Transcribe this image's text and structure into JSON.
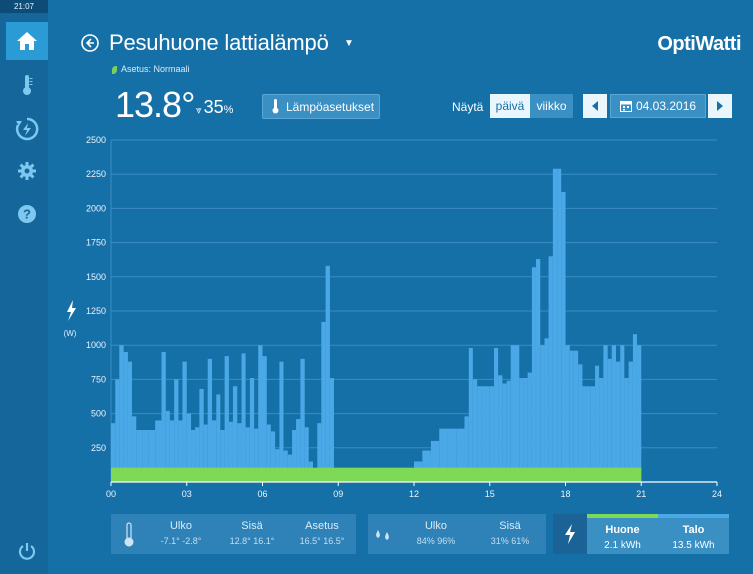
{
  "clock": "21:07",
  "nav": [
    {
      "name": "home-icon"
    },
    {
      "name": "thermometer-icon"
    },
    {
      "name": "energy-saving-icon"
    },
    {
      "name": "gear-icon"
    },
    {
      "name": "help-icon"
    },
    {
      "name": "power-icon"
    }
  ],
  "header": {
    "title": "Pesuhuone lattialämpö",
    "setting": "Asetus: Normaali",
    "brand": "OptiWatti"
  },
  "status": {
    "temperature": "13.8°",
    "humidity": "35",
    "humidity_unit": "%",
    "heat_button": "Lämpöasetukset"
  },
  "view": {
    "show_label": "Näytä",
    "day": "päivä",
    "week": "viikko",
    "date": "04.03.2016"
  },
  "colors": {
    "background": "#1670a8",
    "bar": "#4aa8e6",
    "setpoint": "#7ed957",
    "accent": "#2b9bd6"
  },
  "chart_data": {
    "type": "bar",
    "ylabel": "(W)",
    "ylim": [
      0,
      2500
    ],
    "yticks": [
      "2500",
      "2250",
      "2000",
      "1750",
      "1500",
      "1250",
      "1000",
      "750",
      "500",
      "250"
    ],
    "xlim": [
      0,
      24
    ],
    "xticks": [
      "00",
      "03",
      "06",
      "09",
      "12",
      "15",
      "18",
      "21",
      "24"
    ],
    "series_power": [
      [
        0.0,
        0.17,
        430
      ],
      [
        0.17,
        0.33,
        750
      ],
      [
        0.33,
        0.5,
        1000
      ],
      [
        0.5,
        0.67,
        950
      ],
      [
        0.67,
        0.83,
        880
      ],
      [
        0.83,
        1.0,
        480
      ],
      [
        1.0,
        1.25,
        380
      ],
      [
        1.25,
        1.5,
        380
      ],
      [
        1.5,
        1.75,
        380
      ],
      [
        1.75,
        2.0,
        450
      ],
      [
        2.0,
        2.17,
        950
      ],
      [
        2.17,
        2.33,
        520
      ],
      [
        2.33,
        2.5,
        450
      ],
      [
        2.5,
        2.67,
        750
      ],
      [
        2.67,
        2.83,
        450
      ],
      [
        2.83,
        3.0,
        880
      ],
      [
        3.0,
        3.17,
        500
      ],
      [
        3.17,
        3.33,
        380
      ],
      [
        3.33,
        3.5,
        400
      ],
      [
        3.5,
        3.67,
        680
      ],
      [
        3.67,
        3.83,
        420
      ],
      [
        3.83,
        4.0,
        900
      ],
      [
        4.0,
        4.17,
        450
      ],
      [
        4.17,
        4.33,
        640
      ],
      [
        4.33,
        4.5,
        380
      ],
      [
        4.5,
        4.67,
        920
      ],
      [
        4.67,
        4.83,
        440
      ],
      [
        4.83,
        5.0,
        700
      ],
      [
        5.0,
        5.17,
        430
      ],
      [
        5.17,
        5.33,
        940
      ],
      [
        5.33,
        5.5,
        400
      ],
      [
        5.5,
        5.67,
        760
      ],
      [
        5.67,
        5.83,
        390
      ],
      [
        5.83,
        6.0,
        1000
      ],
      [
        6.0,
        6.17,
        920
      ],
      [
        6.17,
        6.33,
        420
      ],
      [
        6.33,
        6.5,
        370
      ],
      [
        6.5,
        6.67,
        240
      ],
      [
        6.67,
        6.83,
        880
      ],
      [
        6.83,
        7.0,
        230
      ],
      [
        7.0,
        7.17,
        200
      ],
      [
        7.17,
        7.33,
        380
      ],
      [
        7.33,
        7.5,
        460
      ],
      [
        7.5,
        7.67,
        900
      ],
      [
        7.67,
        7.83,
        400
      ],
      [
        7.83,
        8.0,
        150
      ],
      [
        8.0,
        8.17,
        100
      ],
      [
        8.17,
        8.33,
        430
      ],
      [
        8.33,
        8.5,
        1170
      ],
      [
        8.5,
        8.67,
        1580
      ],
      [
        8.67,
        8.83,
        760
      ],
      [
        8.83,
        9.0,
        100
      ],
      [
        12.0,
        12.33,
        150
      ],
      [
        12.33,
        12.67,
        230
      ],
      [
        12.67,
        13.0,
        300
      ],
      [
        13.0,
        13.33,
        390
      ],
      [
        13.33,
        13.67,
        390
      ],
      [
        13.67,
        14.0,
        390
      ],
      [
        14.0,
        14.17,
        480
      ],
      [
        14.17,
        14.33,
        980
      ],
      [
        14.33,
        14.5,
        750
      ],
      [
        14.5,
        14.67,
        700
      ],
      [
        14.67,
        14.83,
        700
      ],
      [
        14.83,
        15.0,
        700
      ],
      [
        15.0,
        15.17,
        700
      ],
      [
        15.17,
        15.33,
        980
      ],
      [
        15.33,
        15.5,
        780
      ],
      [
        15.5,
        15.67,
        720
      ],
      [
        15.67,
        15.83,
        740
      ],
      [
        15.83,
        16.0,
        1000
      ],
      [
        16.0,
        16.17,
        1000
      ],
      [
        16.17,
        16.33,
        760
      ],
      [
        16.33,
        16.5,
        760
      ],
      [
        16.5,
        16.67,
        800
      ],
      [
        16.67,
        16.83,
        1570
      ],
      [
        16.83,
        17.0,
        1630
      ],
      [
        17.0,
        17.17,
        1000
      ],
      [
        17.17,
        17.33,
        1050
      ],
      [
        17.33,
        17.5,
        1650
      ],
      [
        17.5,
        17.67,
        2290
      ],
      [
        17.67,
        17.83,
        2290
      ],
      [
        17.83,
        18.0,
        2120
      ],
      [
        18.0,
        18.17,
        1000
      ],
      [
        18.17,
        18.33,
        960
      ],
      [
        18.33,
        18.5,
        960
      ],
      [
        18.5,
        18.67,
        860
      ],
      [
        18.67,
        18.83,
        700
      ],
      [
        18.83,
        19.0,
        700
      ],
      [
        19.0,
        19.17,
        700
      ],
      [
        19.17,
        19.33,
        850
      ],
      [
        19.33,
        19.5,
        760
      ],
      [
        19.5,
        19.67,
        1000
      ],
      [
        19.67,
        19.83,
        900
      ],
      [
        19.83,
        20.0,
        1000
      ],
      [
        20.0,
        20.17,
        880
      ],
      [
        20.17,
        20.33,
        1000
      ],
      [
        20.33,
        20.5,
        760
      ],
      [
        20.5,
        20.67,
        880
      ],
      [
        20.67,
        20.83,
        1080
      ],
      [
        20.83,
        21.0,
        1000
      ]
    ],
    "series_setpoint": {
      "x_start": 0,
      "x_end": 21,
      "value": 90
    }
  },
  "footer": {
    "temps": {
      "ulko_label": "Ulko",
      "ulko_values": "-7.1°   -2.8°",
      "sisa_label": "Sisä",
      "sisa_values": "12.8°   16.1°",
      "asetus_label": "Asetus",
      "asetus_values": "16.5°   16.5°"
    },
    "humidity": {
      "ulko_label": "Ulko",
      "ulko_values": "84%   96%",
      "sisa_label": "Sisä",
      "sisa_values": "31%   61%"
    },
    "energy": {
      "room_label": "Huone",
      "room_value": "2.1 kWh",
      "house_label": "Talo",
      "house_value": "13.5 kWh"
    }
  }
}
